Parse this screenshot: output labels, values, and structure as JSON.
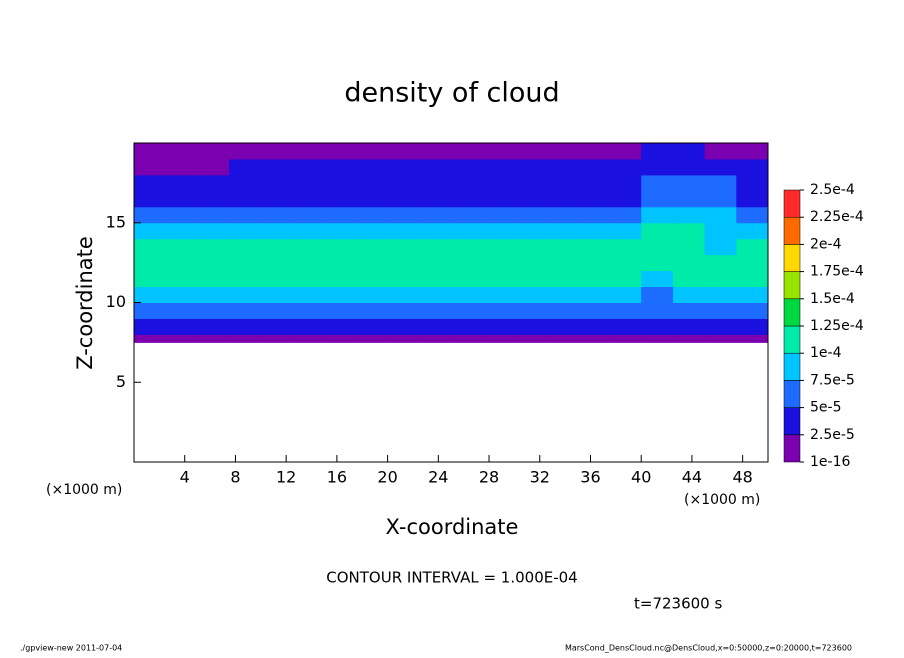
{
  "chart_data": {
    "type": "heatmap",
    "title": "density of cloud",
    "x_label": "X-coordinate",
    "y_label": "Z-coordinate",
    "x_unit_left": "(×1000 m)",
    "x_unit_right": "(×1000 m)",
    "contour_note": "CONTOUR INTERVAL = 1.000E-04",
    "time_note": "t=723600 s",
    "footer_left": "./gpview-new  2011-07-04",
    "footer_right": "MarsCond_DensCloud.nc@DensCloud,x=0:50000,z=0:20000,t=723600",
    "xlim": [
      0,
      50
    ],
    "ylim": [
      0,
      20
    ],
    "xticks": [
      4,
      8,
      12,
      16,
      20,
      24,
      28,
      32,
      36,
      40,
      44,
      48
    ],
    "yticks": [
      5,
      10,
      15
    ],
    "x_edges": [
      0,
      2.5,
      5,
      7.5,
      10,
      12.5,
      15,
      17.5,
      20,
      22.5,
      25,
      27.5,
      30,
      32.5,
      35,
      37.5,
      40,
      42.5,
      45,
      47.5,
      50
    ],
    "z_edges": [
      7.5,
      8,
      9,
      10,
      11,
      12,
      13,
      14,
      15,
      16,
      17,
      18,
      19,
      20
    ],
    "values": [
      [
        1e-16,
        1e-16,
        1e-16,
        1e-16,
        1e-16,
        1e-16,
        1e-16,
        1e-16,
        1e-16,
        1e-16,
        1e-16,
        1e-16,
        1e-16,
        1e-16,
        1e-16,
        1e-16,
        1e-16,
        1e-16,
        1e-16,
        1e-16
      ],
      [
        3e-05,
        3e-05,
        3e-05,
        3e-05,
        3e-05,
        3e-05,
        3e-05,
        3e-05,
        3e-05,
        3e-05,
        3e-05,
        3e-05,
        3e-05,
        3e-05,
        3e-05,
        3e-05,
        3e-05,
        3e-05,
        3e-05,
        3e-05
      ],
      [
        6e-05,
        6e-05,
        6e-05,
        6e-05,
        6e-05,
        6e-05,
        6e-05,
        6e-05,
        6e-05,
        6e-05,
        6e-05,
        6e-05,
        6e-05,
        6e-05,
        6e-05,
        6e-05,
        5e-05,
        6e-05,
        6e-05,
        6e-05
      ],
      [
        9e-05,
        9e-05,
        9e-05,
        9e-05,
        9e-05,
        9e-05,
        9e-05,
        9e-05,
        9e-05,
        9e-05,
        9e-05,
        9e-05,
        9e-05,
        9e-05,
        9e-05,
        8e-05,
        7e-05,
        8e-05,
        9e-05,
        9e-05
      ],
      [
        0.00011,
        0.00011,
        0.00011,
        0.00011,
        0.00011,
        0.00011,
        0.00011,
        0.00011,
        0.00011,
        0.00011,
        0.00011,
        0.00011,
        0.00011,
        0.00011,
        0.00011,
        0.00011,
        9e-05,
        0.00011,
        0.00011,
        0.00011
      ],
      [
        0.00012,
        0.00012,
        0.00012,
        0.00012,
        0.00012,
        0.00012,
        0.00012,
        0.00012,
        0.00012,
        0.00012,
        0.00012,
        0.00012,
        0.00012,
        0.00012,
        0.00012,
        0.00012,
        0.000105,
        0.00012,
        0.00012,
        0.00012
      ],
      [
        0.00011,
        0.00011,
        0.00011,
        0.00011,
        0.00011,
        0.00011,
        0.00011,
        0.00011,
        0.00011,
        0.00011,
        0.00011,
        0.00011,
        0.00011,
        0.00011,
        0.00011,
        0.00011,
        0.00011,
        0.00011,
        9e-05,
        0.00011
      ],
      [
        9e-05,
        9e-05,
        9e-05,
        9e-05,
        9e-05,
        9e-05,
        9e-05,
        9e-05,
        9e-05,
        9e-05,
        9e-05,
        9e-05,
        9e-05,
        9e-05,
        9e-05,
        9e-05,
        0.0001,
        0.000105,
        9e-05,
        9e-05
      ],
      [
        6e-05,
        6e-05,
        6e-05,
        6e-05,
        6e-05,
        6e-05,
        6e-05,
        6e-05,
        6e-05,
        6e-05,
        6e-05,
        6e-05,
        6e-05,
        6e-05,
        6e-05,
        6e-05,
        9e-05,
        9e-05,
        9e-05,
        6e-05
      ],
      [
        4e-05,
        4e-05,
        4e-05,
        4e-05,
        4e-05,
        4e-05,
        4e-05,
        4e-05,
        4e-05,
        4e-05,
        4e-05,
        4e-05,
        4e-05,
        4e-05,
        4e-05,
        4e-05,
        7e-05,
        7e-05,
        7e-05,
        4e-05
      ],
      [
        3.5e-05,
        3.5e-05,
        3.5e-05,
        3.5e-05,
        3.5e-05,
        3.5e-05,
        3.5e-05,
        3.5e-05,
        3.5e-05,
        3.5e-05,
        3.5e-05,
        3.5e-05,
        3.5e-05,
        3.5e-05,
        3.5e-05,
        3.5e-05,
        5.5e-05,
        5.5e-05,
        5.5e-05,
        3.5e-05
      ],
      [
        2e-05,
        2e-05,
        2e-05,
        3e-05,
        3e-05,
        3e-05,
        3e-05,
        3e-05,
        3e-05,
        3e-05,
        3e-05,
        3e-05,
        3e-05,
        3e-05,
        3e-05,
        3e-05,
        4e-05,
        4e-05,
        4e-05,
        3e-05
      ],
      [
        2e-05,
        2e-05,
        2e-05,
        2e-05,
        2e-05,
        2e-05,
        2e-05,
        2e-05,
        2e-05,
        2e-05,
        2e-05,
        2e-05,
        2e-05,
        2e-05,
        2e-05,
        2e-05,
        3e-05,
        3e-05,
        2e-05,
        2e-05
      ]
    ],
    "levels": [
      {
        "value": 1e-16,
        "label": "1e-16"
      },
      {
        "value": 2.5e-05,
        "label": "2.5e-5"
      },
      {
        "value": 5e-05,
        "label": "5e-5"
      },
      {
        "value": 7.5e-05,
        "label": "7.5e-5"
      },
      {
        "value": 0.0001,
        "label": "1e-4"
      },
      {
        "value": 0.000125,
        "label": "1.25e-4"
      },
      {
        "value": 0.00015,
        "label": "1.5e-4"
      },
      {
        "value": 0.000175,
        "label": "1.75e-4"
      },
      {
        "value": 0.0002,
        "label": "2e-4"
      },
      {
        "value": 0.000225,
        "label": "2.25e-4"
      },
      {
        "value": 0.00025,
        "label": "2.5e-4"
      }
    ],
    "colors": [
      "#7a00b0",
      "#1a10e0",
      "#1e6cff",
      "#00c4ff",
      "#00eaa8",
      "#00d840",
      "#98e400",
      "#ffd800",
      "#ff6a00",
      "#ff2a2a"
    ]
  }
}
